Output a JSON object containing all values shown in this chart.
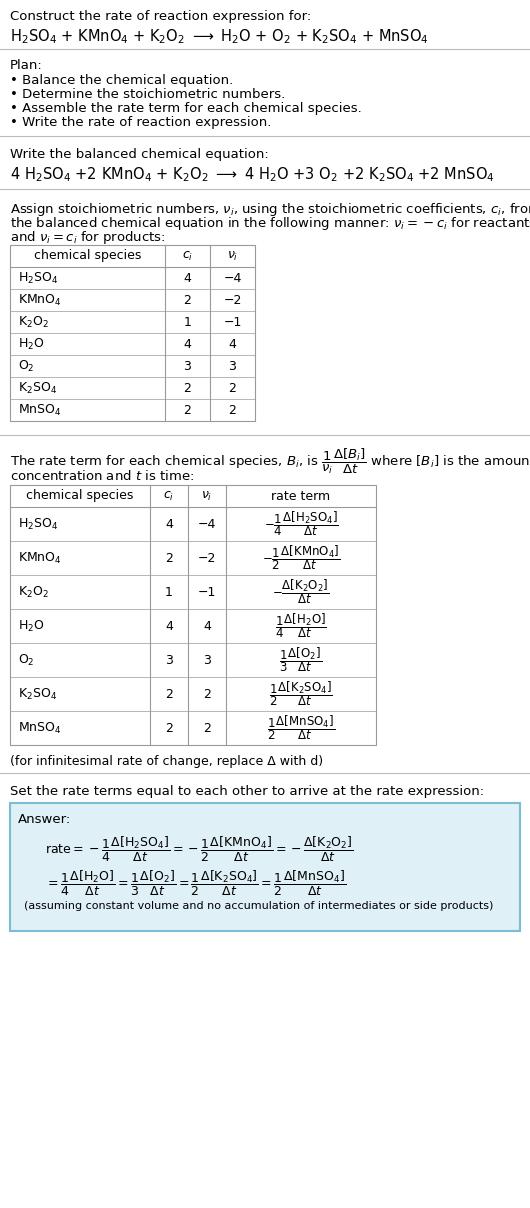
{
  "title_line1": "Construct the rate of reaction expression for:",
  "plan_header": "Plan:",
  "plan_items": [
    "• Balance the chemical equation.",
    "• Determine the stoichiometric numbers.",
    "• Assemble the rate term for each chemical species.",
    "• Write the rate of reaction expression."
  ],
  "balanced_header": "Write the balanced chemical equation:",
  "assign_text1": "Assign stoichiometric numbers, νi, using the stoichiometric coefficients, ci, from",
  "assign_text2": "the balanced chemical equation in the following manner: νi = −ci for reactants",
  "assign_text3": "and νi = ci for products:",
  "table1_rows": [
    [
      "H_2SO_4",
      "4",
      "−4"
    ],
    [
      "KMnO_4",
      "2",
      "−2"
    ],
    [
      "K_2O_2",
      "1",
      "−1"
    ],
    [
      "H_2O",
      "4",
      "4"
    ],
    [
      "O_2",
      "3",
      "3"
    ],
    [
      "K_2SO_4",
      "2",
      "2"
    ],
    [
      "MnSO_4",
      "2",
      "2"
    ]
  ],
  "infinitesimal_note": "(for infinitesimal rate of change, replace Δ with d)",
  "set_rate_text": "Set the rate terms equal to each other to arrive at the rate expression:",
  "answer_bg_color": "#dff0f7",
  "answer_border_color": "#7bbdd4",
  "bg_color": "#ffffff",
  "table_border_color": "#999999",
  "font_size": 9.5
}
